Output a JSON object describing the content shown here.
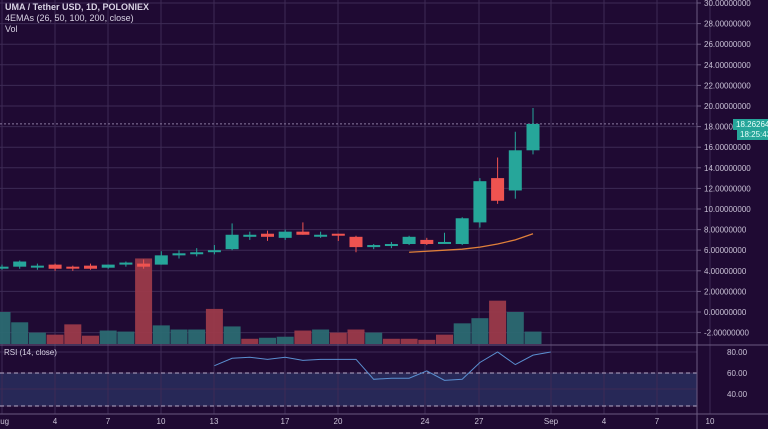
{
  "header": {
    "symbol_line": "UMA / Tether USD, 1D, POLONIEX",
    "indicator_line": "4EMAs (26, 50, 100, 200, close)",
    "volume_line": "Vol",
    "rsi_line": "RSI (14, close)"
  },
  "price_tag": "18.26264439",
  "countdown_tag": "18:25:43",
  "colors": {
    "background": "#1f0a33",
    "grid": "#3d2a55",
    "up": "#26a69a",
    "down": "#ef5350",
    "vol_up": "#2b6a72",
    "vol_down": "#9b3a4a",
    "ema": "#e0803a",
    "rsi_line": "#5b8fd0",
    "rsi_band": "#272857",
    "axis_text": "#c9c2d6"
  },
  "chart_data": [
    {
      "type": "candlestick",
      "title": "UMA / Tether USD, 1D, POLONIEX",
      "y_axis_ticks": [
        "30.00000000",
        "28.00000000",
        "26.00000000",
        "24.00000000",
        "22.00000000",
        "20.00000000",
        "18.00000000",
        "16.00000000",
        "14.00000000",
        "12.00000000",
        "10.00000000",
        "8.00000000",
        "6.00000000",
        "4.00000000",
        "2.00000000",
        "0.00000000",
        "-2.00000000"
      ],
      "x_axis_ticks": [
        "Aug",
        "4",
        "7",
        "10",
        "13",
        "17",
        "20",
        "24",
        "27",
        "Sep",
        "4",
        "7",
        "10"
      ],
      "ylim": [
        -3,
        30
      ],
      "days": [
        "Aug 1",
        "Aug 2",
        "Aug 3",
        "Aug 4",
        "Aug 5",
        "Aug 6",
        "Aug 7",
        "Aug 8",
        "Aug 9",
        "Aug 10",
        "Aug 11",
        "Aug 12",
        "Aug 13",
        "Aug 14",
        "Aug 15",
        "Aug 16",
        "Aug 17",
        "Aug 18",
        "Aug 19",
        "Aug 20",
        "Aug 21",
        "Aug 22",
        "Aug 23",
        "Aug 24",
        "Aug 25",
        "Aug 26",
        "Aug 27",
        "Aug 28",
        "Aug 29",
        "Aug 30",
        "Aug 31"
      ],
      "ohlc": [
        [
          4.3,
          4.6,
          4.1,
          4.4
        ],
        [
          4.4,
          5.0,
          4.2,
          4.9
        ],
        [
          4.4,
          4.7,
          4.1,
          4.5
        ],
        [
          4.6,
          4.7,
          4.0,
          4.2
        ],
        [
          4.4,
          4.5,
          4.0,
          4.3
        ],
        [
          4.5,
          4.7,
          4.1,
          4.2
        ],
        [
          4.3,
          4.6,
          4.2,
          4.6
        ],
        [
          4.6,
          4.9,
          4.4,
          4.8
        ],
        [
          4.7,
          5.1,
          4.2,
          4.4
        ],
        [
          4.6,
          5.9,
          4.6,
          5.5
        ],
        [
          5.5,
          6.0,
          5.2,
          5.7
        ],
        [
          5.7,
          6.2,
          5.4,
          5.8
        ],
        [
          5.9,
          6.5,
          5.6,
          6.0
        ],
        [
          6.1,
          8.6,
          6.0,
          7.5
        ],
        [
          7.3,
          7.8,
          7.0,
          7.5
        ],
        [
          7.6,
          7.9,
          6.9,
          7.3
        ],
        [
          7.2,
          8.0,
          7.0,
          7.8
        ],
        [
          7.8,
          8.7,
          7.5,
          7.5
        ],
        [
          7.4,
          7.8,
          7.2,
          7.5
        ],
        [
          7.6,
          7.6,
          6.9,
          7.5
        ],
        [
          7.3,
          7.4,
          5.8,
          6.3
        ],
        [
          6.3,
          6.6,
          6.1,
          6.5
        ],
        [
          6.5,
          6.8,
          6.2,
          6.6
        ],
        [
          6.6,
          7.4,
          6.5,
          7.3
        ],
        [
          7.0,
          7.2,
          6.5,
          6.6
        ],
        [
          6.7,
          7.7,
          6.6,
          6.8
        ],
        [
          6.6,
          9.2,
          6.5,
          9.1
        ],
        [
          8.7,
          13.0,
          8.2,
          12.7
        ],
        [
          13.0,
          15.0,
          10.5,
          10.8
        ],
        [
          11.8,
          17.5,
          11.0,
          15.7
        ],
        [
          15.7,
          19.8,
          15.3,
          18.26
        ]
      ],
      "volume_dir": [
        "up",
        "up",
        "up",
        "down",
        "down",
        "down",
        "up",
        "up",
        "down",
        "up",
        "up",
        "up",
        "down",
        "up",
        "down",
        "up",
        "up",
        "down",
        "up",
        "down",
        "down",
        "up",
        "down",
        "down",
        "down",
        "down",
        "up",
        "up",
        "down",
        "up",
        "up"
      ],
      "volume_top_values": [
        0.0,
        -1.0,
        -2.0,
        -2.2,
        -1.2,
        -2.3,
        -1.8,
        -1.9,
        5.2,
        -1.3,
        -1.7,
        -1.7,
        0.3,
        -1.4,
        -2.6,
        -2.5,
        -2.4,
        -1.8,
        -1.7,
        -2.0,
        -1.7,
        -2.0,
        -2.6,
        -2.6,
        -2.7,
        -2.2,
        -1.1,
        -0.6,
        1.1,
        0.0,
        -1.9
      ],
      "ema": {
        "name": "EMA 26",
        "start_day": "Aug 24",
        "values": [
          5.8,
          5.9,
          6.0,
          6.1,
          6.3,
          6.6,
          7.0,
          7.6
        ]
      },
      "current_price": 18.26264439
    },
    {
      "type": "line",
      "title": "RSI (14, close)",
      "y_axis_ticks": [
        "80.00",
        "60.00",
        "40.00"
      ],
      "bands": [
        70,
        30
      ],
      "start_day": "Aug 13",
      "values": [
        67,
        74,
        75,
        73,
        75,
        72,
        73,
        73,
        73,
        54,
        55,
        55,
        62,
        53,
        54,
        70,
        80,
        68,
        77,
        80
      ]
    }
  ]
}
